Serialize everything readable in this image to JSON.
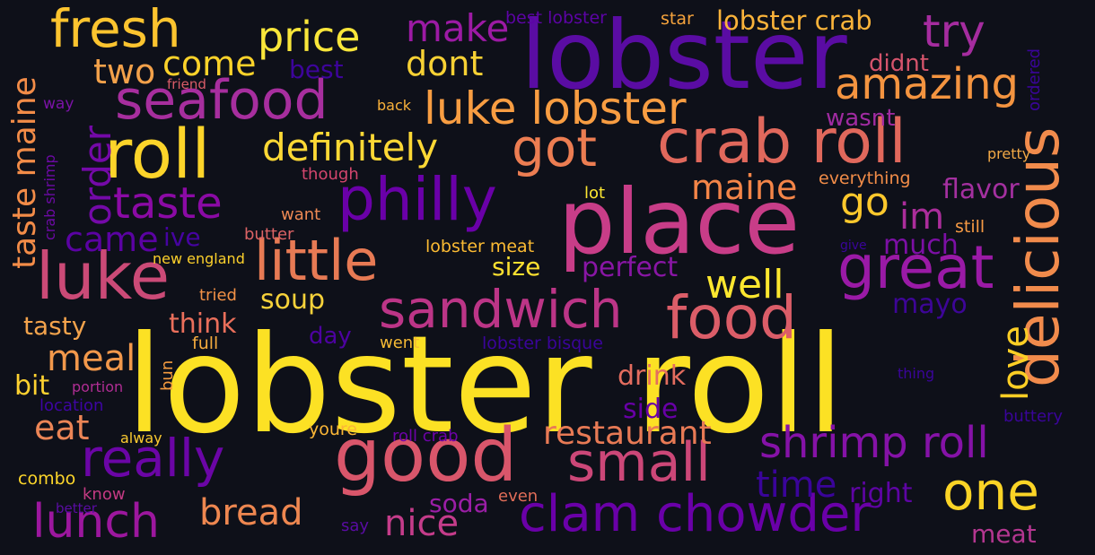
{
  "words": [
    {
      "text": "lobster roll",
      "color": "#fce124"
    },
    {
      "text": "lobster",
      "color": "#5a0ca3"
    },
    {
      "text": "place",
      "color": "#c83d88"
    },
    {
      "text": "good",
      "color": "#d9566b"
    },
    {
      "text": "delicious",
      "color": "#f18b4c"
    },
    {
      "text": "crab roll",
      "color": "#e0685c"
    },
    {
      "text": "roll",
      "color": "#fcd42a"
    },
    {
      "text": "seafood",
      "color": "#a72e9e"
    },
    {
      "text": "luke",
      "color": "#cb4a77"
    },
    {
      "text": "little",
      "color": "#e77a54"
    },
    {
      "text": "philly",
      "color": "#6a00a8"
    },
    {
      "text": "sandwich",
      "color": "#bc3587"
    },
    {
      "text": "food",
      "color": "#db5d68"
    },
    {
      "text": "great",
      "color": "#9a1aa6"
    },
    {
      "text": "small",
      "color": "#cc4778"
    },
    {
      "text": "really",
      "color": "#6b05a6"
    },
    {
      "text": "fresh",
      "color": "#fcc42f"
    },
    {
      "text": "clam chowder",
      "color": "#6a00a8"
    },
    {
      "text": "shrimp roll",
      "color": "#8512a7"
    },
    {
      "text": "one",
      "color": "#fbd426"
    },
    {
      "text": "got",
      "color": "#ec7d52"
    },
    {
      "text": "luke lobster",
      "color": "#f89d42"
    },
    {
      "text": "amazing",
      "color": "#f49440"
    },
    {
      "text": "taste",
      "color": "#8b0aa5"
    },
    {
      "text": "definitely",
      "color": "#fdd835"
    },
    {
      "text": "price",
      "color": "#f9e63a"
    },
    {
      "text": "lunch",
      "color": "#9c179e"
    },
    {
      "text": "order",
      "color": "#7409a8"
    },
    {
      "text": "taste maine",
      "color": "#f38c48"
    },
    {
      "text": "try",
      "color": "#a52c9f"
    },
    {
      "text": "make",
      "color": "#9c1aa4"
    },
    {
      "text": "maine",
      "color": "#f48548"
    },
    {
      "text": "bread",
      "color": "#ee8750"
    },
    {
      "text": "restaurant",
      "color": "#e87a55"
    },
    {
      "text": "love",
      "color": "#fcce25"
    },
    {
      "text": "come",
      "color": "#fbd22a"
    },
    {
      "text": "dont",
      "color": "#f7d134"
    },
    {
      "text": "two",
      "color": "#f3a14a"
    },
    {
      "text": "came",
      "color": "#5b02a3"
    },
    {
      "text": "meal",
      "color": "#f2984b"
    },
    {
      "text": "eat",
      "color": "#ec8556"
    },
    {
      "text": "well",
      "color": "#fce72f"
    },
    {
      "text": "go",
      "color": "#fdc82c"
    },
    {
      "text": "im",
      "color": "#ab2d9b"
    },
    {
      "text": "time",
      "color": "#3a049a"
    },
    {
      "text": "nice",
      "color": "#c43c8a"
    },
    {
      "text": "lobster crab",
      "color": "#fab33a"
    },
    {
      "text": "soup",
      "color": "#f7d23a"
    },
    {
      "text": "perfect",
      "color": "#8916a5"
    },
    {
      "text": "much",
      "color": "#7c0fa5"
    },
    {
      "text": "right",
      "color": "#5e04a4"
    },
    {
      "text": "mayo",
      "color": "#3d0597"
    },
    {
      "text": "flavor",
      "color": "#a430a0"
    },
    {
      "text": "tasty",
      "color": "#f3a34c"
    },
    {
      "text": "think",
      "color": "#ea6f5b"
    },
    {
      "text": "bit",
      "color": "#fdd130"
    },
    {
      "text": "drink",
      "color": "#e46d5f"
    },
    {
      "text": "side",
      "color": "#6800a6"
    },
    {
      "text": "soda",
      "color": "#9b1ea6"
    },
    {
      "text": "size",
      "color": "#fce030"
    },
    {
      "text": "didnt",
      "color": "#d5546c"
    },
    {
      "text": "wasnt",
      "color": "#a02ba1"
    },
    {
      "text": "ive",
      "color": "#4603a1"
    },
    {
      "text": "best",
      "color": "#3d049b"
    },
    {
      "text": "day",
      "color": "#4d02a0"
    },
    {
      "text": "meat",
      "color": "#b43690"
    },
    {
      "text": "best lobster",
      "color": "#5d03a6"
    },
    {
      "text": "star",
      "color": "#f6a33c"
    },
    {
      "text": "crab shrimp",
      "color": "#6c0aa4"
    },
    {
      "text": "way",
      "color": "#7b12a6"
    },
    {
      "text": "friend",
      "color": "#d85c68"
    },
    {
      "text": "back",
      "color": "#f9b13a"
    },
    {
      "text": "though",
      "color": "#d4466e"
    },
    {
      "text": "want",
      "color": "#ee8954"
    },
    {
      "text": "butter",
      "color": "#dc6365"
    },
    {
      "text": "new england",
      "color": "#fcd02b"
    },
    {
      "text": "tried",
      "color": "#f29146"
    },
    {
      "text": "full",
      "color": "#f4ab3e"
    },
    {
      "text": "bun",
      "color": "#f49b40"
    },
    {
      "text": "portion",
      "color": "#b02d94"
    },
    {
      "text": "location",
      "color": "#3e05a3"
    },
    {
      "text": "alway",
      "color": "#fccb30"
    },
    {
      "text": "youre",
      "color": "#fbb637"
    },
    {
      "text": "roll crab",
      "color": "#6e02a8"
    },
    {
      "text": "went",
      "color": "#f6ba34"
    },
    {
      "text": "lobster bisque",
      "color": "#3a049a"
    },
    {
      "text": "lobster meat",
      "color": "#fcbb33"
    },
    {
      "text": "lot",
      "color": "#fde732"
    },
    {
      "text": "everything",
      "color": "#f18c48"
    },
    {
      "text": "still",
      "color": "#f69a44"
    },
    {
      "text": "pretty",
      "color": "#f2a946"
    },
    {
      "text": "give",
      "color": "#3a049a"
    },
    {
      "text": "ordered",
      "color": "#3a049a"
    },
    {
      "text": "thing",
      "color": "#3a049a"
    },
    {
      "text": "buttery",
      "color": "#3a049a"
    },
    {
      "text": "combo",
      "color": "#fdd62a"
    },
    {
      "text": "know",
      "color": "#c43a83"
    },
    {
      "text": "better",
      "color": "#5a0ca3"
    },
    {
      "text": "say",
      "color": "#5a0ca3"
    },
    {
      "text": "even",
      "color": "#e06d58"
    }
  ]
}
